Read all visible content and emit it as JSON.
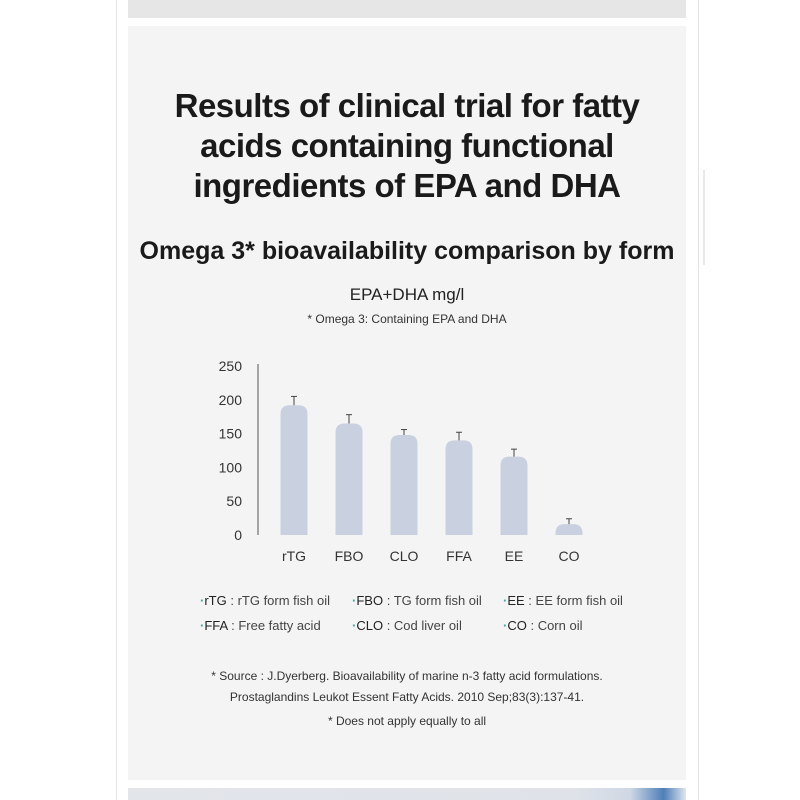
{
  "title_lines": [
    "Results of clinical trial for fatty",
    "acids containing functional",
    "ingredients of EPA and DHA"
  ],
  "subtitle": "Omega 3* bioavailability comparison by form",
  "chart_unit": "EPA+DHA mg/l",
  "omega_note": "* Omega 3: Containing EPA and DHA",
  "chart_data": {
    "type": "bar",
    "categories": [
      "rTG",
      "FBO",
      "CLO",
      "FFA",
      "EE",
      "CO"
    ],
    "values": [
      192,
      165,
      148,
      140,
      116,
      16
    ],
    "error": [
      13,
      13,
      8,
      12,
      11,
      8
    ],
    "title": "",
    "xlabel": "",
    "ylabel": "EPA+DHA mg/l",
    "ylim": [
      0,
      250
    ],
    "yticks": [
      0,
      50,
      100,
      150,
      200,
      250
    ],
    "grid": false,
    "bar_color": "#c9d1e0"
  },
  "legend": [
    {
      "code": "rTG",
      "desc": "rTG form fish oil"
    },
    {
      "code": "FBO",
      "desc": "TG form fish oil"
    },
    {
      "code": "EE",
      "desc": "EE form fish oil"
    },
    {
      "code": "FFA",
      "desc": "Free fatty acid"
    },
    {
      "code": "CLO",
      "desc": "Cod liver oil"
    },
    {
      "code": "CO",
      "desc": "Corn oil"
    }
  ],
  "source_lines": [
    "* Source : J.Dyerberg. Bioavailability of marine n-3 fatty acid formulations.",
    "Prostaglandins Leukot Essent Fatty Acids. 2010 Sep;83(3):137-41."
  ],
  "disclaimer": "* Does not apply equally to all",
  "colors": {
    "panel": "#f4f4f4",
    "bar": "#c9d1e0",
    "legend_dot": "#3aa6a0"
  }
}
